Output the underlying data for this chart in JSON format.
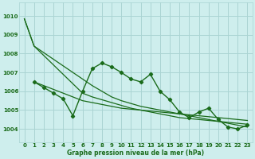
{
  "title": "Graphe pression niveau de la mer (hPa)",
  "background_color": "#ceeeed",
  "grid_color": "#aad4d3",
  "line_color": "#1a6b1a",
  "xlim": [
    -0.5,
    23.5
  ],
  "ylim": [
    1003.3,
    1010.7
  ],
  "yticks": [
    1004,
    1005,
    1006,
    1007,
    1008,
    1009,
    1010
  ],
  "xticks": [
    0,
    1,
    2,
    3,
    4,
    5,
    6,
    7,
    8,
    9,
    10,
    11,
    12,
    13,
    14,
    15,
    16,
    17,
    18,
    19,
    20,
    21,
    22,
    23
  ],
  "line1_x": [
    0,
    1,
    2,
    3,
    4,
    5,
    6,
    7,
    8,
    9,
    10,
    11,
    12,
    13,
    14,
    15,
    16,
    17,
    18,
    19,
    20,
    21,
    22,
    23
  ],
  "line1_y": [
    1009.85,
    1008.4,
    1007.9,
    1007.4,
    1006.9,
    1006.4,
    1005.9,
    1005.7,
    1005.55,
    1005.4,
    1005.25,
    1005.1,
    1005.0,
    1004.9,
    1004.8,
    1004.7,
    1004.6,
    1004.55,
    1004.5,
    1004.45,
    1004.4,
    1004.35,
    1004.3,
    1004.25
  ],
  "line2_x": [
    0,
    1,
    2,
    3,
    4,
    5,
    6,
    7,
    8,
    9,
    10,
    11,
    12,
    13,
    14,
    15,
    16,
    17,
    18,
    19,
    20,
    21,
    22,
    23
  ],
  "line2_y": [
    1009.85,
    1008.4,
    1008.05,
    1007.7,
    1007.35,
    1007.0,
    1006.65,
    1006.3,
    1006.0,
    1005.7,
    1005.5,
    1005.35,
    1005.2,
    1005.1,
    1005.0,
    1004.9,
    1004.8,
    1004.7,
    1004.6,
    1004.5,
    1004.4,
    1004.3,
    1004.2,
    1004.1
  ],
  "line3_x": [
    1,
    2,
    3,
    4,
    5,
    6,
    7,
    8,
    9,
    10,
    11,
    12,
    13,
    14,
    15,
    16,
    17,
    18,
    19,
    20,
    21,
    22,
    23
  ],
  "line3_y": [
    1006.5,
    1006.3,
    1006.1,
    1005.9,
    1005.7,
    1005.5,
    1005.4,
    1005.3,
    1005.2,
    1005.1,
    1005.05,
    1005.0,
    1004.95,
    1004.9,
    1004.85,
    1004.8,
    1004.75,
    1004.7,
    1004.65,
    1004.6,
    1004.55,
    1004.5,
    1004.45
  ],
  "wavy_x": [
    1,
    2,
    3,
    4,
    5,
    6,
    7,
    8,
    9,
    10,
    11,
    12,
    13,
    14,
    15,
    16,
    17,
    18,
    19,
    20,
    21,
    22,
    23
  ],
  "wavy_y": [
    1006.5,
    1006.2,
    1005.9,
    1005.6,
    1004.7,
    1006.0,
    1007.2,
    1007.5,
    1007.3,
    1007.0,
    1006.65,
    1006.5,
    1006.9,
    1006.0,
    1005.55,
    1004.9,
    1004.6,
    1004.9,
    1005.1,
    1004.5,
    1004.1,
    1004.0,
    1004.2
  ],
  "tick_fontsize": 5.0,
  "label_fontsize": 5.5
}
